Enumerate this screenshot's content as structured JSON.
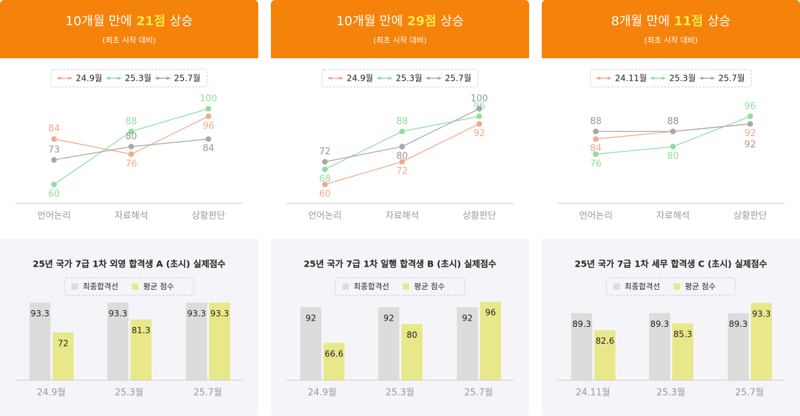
{
  "panels": [
    {
      "title_pre": "10개월 만에",
      "title_highlight": "21점",
      "title_post": "상승",
      "subtitle": "(최초 시작 대비)"
    },
    {
      "title_pre": "10개월 만에",
      "title_highlight": "29점",
      "title_post": "상승",
      "subtitle": "(최초 시작 대비)"
    },
    {
      "title_pre": "8개월 만에",
      "title_highlight": "11점",
      "title_post": "상승",
      "subtitle": "(최초 시작 대비)"
    }
  ],
  "chart_data": [
    {
      "type": "line",
      "categories": [
        "언어논리",
        "자료해석",
        "상황판단"
      ],
      "ylim": [
        50,
        110
      ],
      "series": [
        {
          "name": "24.9월",
          "color": "#f4a88c",
          "values": [
            84,
            76,
            96
          ]
        },
        {
          "name": "25.3월",
          "color": "#8fdf9c",
          "values": [
            60,
            88,
            100
          ]
        },
        {
          "name": "25.7월",
          "color": "#a8a8a8",
          "values": [
            73,
            80,
            84
          ]
        }
      ]
    },
    {
      "type": "bar",
      "title": "25년 국가 7급 1차 외영 합격생 A (초시) 실제점수",
      "categories": [
        "24.9월",
        "25.3월",
        "25.7월"
      ],
      "ylim": [
        38,
        98
      ],
      "series": [
        {
          "name": "최종합격선",
          "color": "#dcdcdc",
          "values": [
            93.3,
            93.3,
            93.3
          ]
        },
        {
          "name": "평균 점수",
          "color": "#e8e88a",
          "values": [
            72,
            81.3,
            93.3
          ]
        }
      ]
    },
    {
      "type": "line",
      "categories": [
        "언어논리",
        "자료해석",
        "상황판단"
      ],
      "ylim": [
        50,
        110
      ],
      "series": [
        {
          "name": "24.9월",
          "color": "#f4a88c",
          "values": [
            60,
            72,
            92
          ]
        },
        {
          "name": "25.3월",
          "color": "#8fdf9c",
          "values": [
            68,
            88,
            96
          ]
        },
        {
          "name": "25.7월",
          "color": "#a8a8a8",
          "values": [
            72,
            80,
            100
          ]
        }
      ]
    },
    {
      "type": "bar",
      "title": "25년 국가 7급 1차 일행 합격생 B (초시) 실제점수",
      "categories": [
        "24.9월",
        "25.3월",
        "25.7월"
      ],
      "ylim": [
        40,
        100
      ],
      "series": [
        {
          "name": "최종합격선",
          "color": "#dcdcdc",
          "values": [
            92,
            92,
            92
          ]
        },
        {
          "name": "평균 점수",
          "color": "#e8e88a",
          "values": [
            66.6,
            80,
            96
          ]
        }
      ]
    },
    {
      "type": "line",
      "categories": [
        "언어논리",
        "자료해석",
        "상황판단"
      ],
      "ylim": [
        50,
        110
      ],
      "series": [
        {
          "name": "24.11월",
          "color": "#f4a88c",
          "values": [
            84,
            88,
            92
          ]
        },
        {
          "name": "25.3월",
          "color": "#8fdf9c",
          "values": [
            76,
            80,
            96
          ]
        },
        {
          "name": "25.7월",
          "color": "#a8a8a8",
          "values": [
            88,
            88,
            92
          ]
        }
      ]
    },
    {
      "type": "bar",
      "title": "25년 국가 7급 1차 세무 합격생 C (초시) 실제점수",
      "categories": [
        "24.11월",
        "25.3월",
        "25.7월"
      ],
      "ylim": [
        63,
        96
      ],
      "series": [
        {
          "name": "최종합격선",
          "color": "#dcdcdc",
          "values": [
            89.3,
            89.3,
            89.3
          ]
        },
        {
          "name": "평균 점수",
          "color": "#e8e88a",
          "values": [
            82.6,
            85.3,
            93.3
          ]
        }
      ]
    }
  ]
}
